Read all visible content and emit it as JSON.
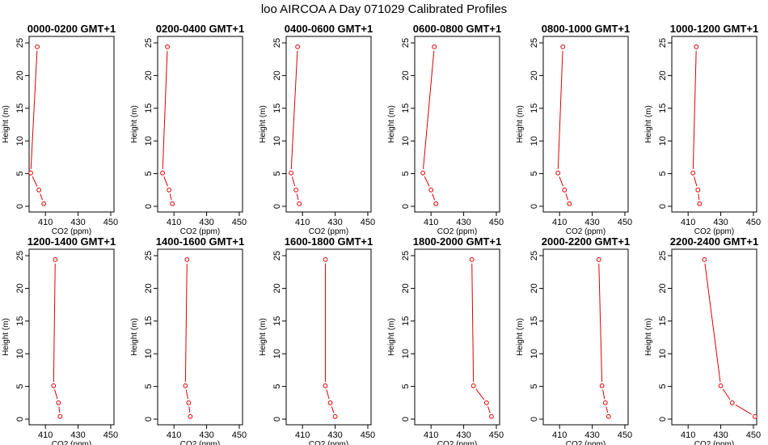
{
  "figure": {
    "title": "loo AIRCOA A  Day 071029  Calibrated Profiles"
  },
  "chart_data": [
    {
      "type": "line",
      "title": "0000-0200 GMT+1",
      "xlabel": "CO2 (ppm)",
      "ylabel": "Height (m)",
      "xlim": [
        400,
        452
      ],
      "ylim": [
        0,
        25
      ],
      "xticks": [
        410,
        430,
        450
      ],
      "yticks": [
        0,
        5,
        10,
        15,
        20,
        25
      ],
      "x": [
        405,
        401,
        406,
        409
      ],
      "y": [
        24.4,
        5.1,
        2.5,
        0.4
      ]
    },
    {
      "type": "line",
      "title": "0200-0400 GMT+1",
      "xlabel": "CO2 (ppm)",
      "ylabel": "Height (m)",
      "xlim": [
        400,
        452
      ],
      "ylim": [
        0,
        25
      ],
      "xticks": [
        410,
        430,
        450
      ],
      "yticks": [
        0,
        5,
        10,
        15,
        20,
        25
      ],
      "x": [
        406,
        403,
        407,
        409
      ],
      "y": [
        24.4,
        5.1,
        2.5,
        0.4
      ]
    },
    {
      "type": "line",
      "title": "0400-0600 GMT+1",
      "xlabel": "CO2 (ppm)",
      "ylabel": "Height (m)",
      "xlim": [
        400,
        452
      ],
      "ylim": [
        0,
        25
      ],
      "xticks": [
        410,
        430,
        450
      ],
      "yticks": [
        0,
        5,
        10,
        15,
        20,
        25
      ],
      "x": [
        407,
        403,
        406,
        408
      ],
      "y": [
        24.4,
        5.1,
        2.5,
        0.4
      ]
    },
    {
      "type": "line",
      "title": "0600-0800 GMT+1",
      "xlabel": "CO2 (ppm)",
      "ylabel": "Height (m)",
      "xlim": [
        400,
        452
      ],
      "ylim": [
        0,
        25
      ],
      "xticks": [
        410,
        430,
        450
      ],
      "yticks": [
        0,
        5,
        10,
        15,
        20,
        25
      ],
      "x": [
        412,
        405,
        410,
        413
      ],
      "y": [
        24.4,
        5.1,
        2.5,
        0.4
      ]
    },
    {
      "type": "line",
      "title": "0800-1000 GMT+1",
      "xlabel": "CO2 (ppm)",
      "ylabel": "Height (m)",
      "xlim": [
        400,
        452
      ],
      "ylim": [
        0,
        25
      ],
      "xticks": [
        410,
        430,
        450
      ],
      "yticks": [
        0,
        5,
        10,
        15,
        20,
        25
      ],
      "x": [
        412,
        409,
        413,
        416
      ],
      "y": [
        24.4,
        5.1,
        2.5,
        0.4
      ]
    },
    {
      "type": "line",
      "title": "1000-1200 GMT+1",
      "xlabel": "CO2 (ppm)",
      "ylabel": "Height (m)",
      "xlim": [
        400,
        452
      ],
      "ylim": [
        0,
        25
      ],
      "xticks": [
        410,
        430,
        450
      ],
      "yticks": [
        0,
        5,
        10,
        15,
        20,
        25
      ],
      "x": [
        415,
        413,
        416,
        417
      ],
      "y": [
        24.4,
        5.1,
        2.5,
        0.4
      ]
    },
    {
      "type": "line",
      "title": "1200-1400 GMT+1",
      "xlabel": "CO2 (ppm)",
      "ylabel": "Height (m)",
      "xlim": [
        400,
        452
      ],
      "ylim": [
        0,
        25
      ],
      "xticks": [
        410,
        430,
        450
      ],
      "yticks": [
        0,
        5,
        10,
        15,
        20,
        25
      ],
      "x": [
        416,
        415,
        418,
        419
      ],
      "y": [
        24.4,
        5.1,
        2.5,
        0.4
      ]
    },
    {
      "type": "line",
      "title": "1400-1600 GMT+1",
      "xlabel": "CO2 (ppm)",
      "ylabel": "Height (m)",
      "xlim": [
        400,
        452
      ],
      "ylim": [
        0,
        25
      ],
      "xticks": [
        410,
        430,
        450
      ],
      "yticks": [
        0,
        5,
        10,
        15,
        20,
        25
      ],
      "x": [
        418,
        417,
        419,
        420
      ],
      "y": [
        24.4,
        5.1,
        2.5,
        0.4
      ]
    },
    {
      "type": "line",
      "title": "1600-1800 GMT+1",
      "xlabel": "CO2 (ppm)",
      "ylabel": "Height (m)",
      "xlim": [
        400,
        452
      ],
      "ylim": [
        0,
        25
      ],
      "xticks": [
        410,
        430,
        450
      ],
      "yticks": [
        0,
        5,
        10,
        15,
        20,
        25
      ],
      "x": [
        424,
        424,
        427,
        430
      ],
      "y": [
        24.4,
        5.1,
        2.5,
        0.4
      ]
    },
    {
      "type": "line",
      "title": "1800-2000 GMT+1",
      "xlabel": "CO2 (ppm)",
      "ylabel": "Height (m)",
      "xlim": [
        400,
        452
      ],
      "ylim": [
        0,
        25
      ],
      "xticks": [
        410,
        430,
        450
      ],
      "yticks": [
        0,
        5,
        10,
        15,
        20,
        25
      ],
      "x": [
        435,
        436,
        444,
        447
      ],
      "y": [
        24.4,
        5.1,
        2.5,
        0.4
      ]
    },
    {
      "type": "line",
      "title": "2000-2200 GMT+1",
      "xlabel": "CO2 (ppm)",
      "ylabel": "Height (m)",
      "xlim": [
        400,
        452
      ],
      "ylim": [
        0,
        25
      ],
      "xticks": [
        410,
        430,
        450
      ],
      "yticks": [
        0,
        5,
        10,
        15,
        20,
        25
      ],
      "x": [
        434,
        436,
        438,
        440
      ],
      "y": [
        24.4,
        5.1,
        2.5,
        0.4
      ]
    },
    {
      "type": "line",
      "title": "2200-2400 GMT+1",
      "xlabel": "CO2 (ppm)",
      "ylabel": "Height (m)",
      "xlim": [
        400,
        452
      ],
      "ylim": [
        0,
        25
      ],
      "xticks": [
        410,
        430,
        450
      ],
      "yticks": [
        0,
        5,
        10,
        15,
        20,
        25
      ],
      "x": [
        420,
        430,
        437,
        451
      ],
      "y": [
        24.4,
        5.1,
        2.5,
        0.4
      ]
    }
  ]
}
